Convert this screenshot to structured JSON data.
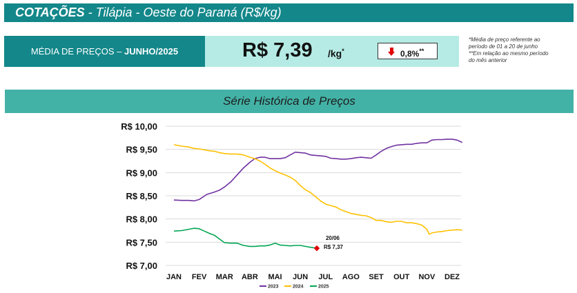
{
  "header": {
    "title_bold": "COTAÇÕES",
    "title_rest": " - Tilápia - Oeste do Paraná (R$/kg)"
  },
  "summary": {
    "avg_label_prefix": "MÉDIA DE PREÇOS – ",
    "avg_label_period": "JUNHO/2025",
    "price": "R$ 7,39",
    "unit": "/kg",
    "unit_mark": "*",
    "change_value": "0,8%",
    "change_mark": "**",
    "change_direction": "down",
    "arrow_color": "#e00000"
  },
  "notes": {
    "note1_line1": "*Média de preço referente ao",
    "note1_line2": "período de 01 a 20 de junho",
    "note2_line1": "**Em relação ao mesmo período",
    "note2_line2": "do mês anterior"
  },
  "section_title": "Série Histórica de Preços",
  "chart_data": {
    "type": "line",
    "title": "",
    "xlabel": "",
    "ylabel": "",
    "categories": [
      "JAN",
      "FEV",
      "MAR",
      "ABR",
      "MAI",
      "JUN",
      "JUL",
      "AGO",
      "SET",
      "OUT",
      "NOV",
      "DEZ"
    ],
    "ylim": [
      7.0,
      10.0
    ],
    "yticks": [
      7.0,
      7.5,
      8.0,
      8.5,
      9.0,
      9.5,
      10.0
    ],
    "ytick_labels": [
      "R$ 7,00",
      "R$ 7,50",
      "R$ 8,00",
      "R$ 8,50",
      "R$ 9,00",
      "R$ 9,50",
      "R$ 10,00"
    ],
    "grid": true,
    "legend": "bottom",
    "series": [
      {
        "name": "2023",
        "color": "#7030a0",
        "x": [
          0.0,
          0.3,
          0.6,
          0.8,
          1.0,
          1.3,
          1.6,
          1.8,
          2.0,
          2.25,
          2.5,
          2.75,
          3.0,
          3.2,
          3.4,
          3.6,
          3.8,
          4.0,
          4.2,
          4.4,
          4.6,
          4.8,
          5.0,
          5.2,
          5.4,
          5.6,
          5.8,
          6.0,
          6.2,
          6.4,
          6.6,
          6.8,
          7.0,
          7.2,
          7.4,
          7.6,
          7.8,
          8.0,
          8.2,
          8.4,
          8.6,
          8.8,
          9.0,
          9.2,
          9.4,
          9.6,
          9.8,
          10.0,
          10.2,
          10.4,
          10.6,
          10.8,
          11.0,
          11.2,
          11.4
        ],
        "values": [
          8.41,
          8.4,
          8.4,
          8.39,
          8.42,
          8.53,
          8.58,
          8.62,
          8.69,
          8.8,
          8.95,
          9.1,
          9.22,
          9.3,
          9.33,
          9.33,
          9.3,
          9.3,
          9.3,
          9.32,
          9.38,
          9.44,
          9.43,
          9.42,
          9.38,
          9.37,
          9.36,
          9.35,
          9.31,
          9.3,
          9.29,
          9.29,
          9.3,
          9.32,
          9.33,
          9.32,
          9.31,
          9.38,
          9.46,
          9.52,
          9.56,
          9.59,
          9.6,
          9.61,
          9.61,
          9.63,
          9.64,
          9.64,
          9.7,
          9.71,
          9.71,
          9.72,
          9.72,
          9.7,
          9.65
        ]
      },
      {
        "name": "2024",
        "color": "#ffc000",
        "x": [
          0.0,
          0.3,
          0.6,
          0.8,
          1.0,
          1.2,
          1.4,
          1.6,
          1.8,
          2.0,
          2.25,
          2.5,
          2.75,
          3.0,
          3.2,
          3.4,
          3.6,
          3.8,
          4.0,
          4.2,
          4.4,
          4.6,
          4.8,
          5.0,
          5.2,
          5.4,
          5.6,
          5.8,
          6.0,
          6.2,
          6.4,
          6.6,
          6.8,
          7.0,
          7.2,
          7.4,
          7.6,
          7.8,
          8.0,
          8.2,
          8.4,
          8.6,
          8.8,
          9.0,
          9.2,
          9.4,
          9.6,
          9.8,
          10.0,
          10.1,
          10.2,
          10.4,
          10.6,
          10.8,
          11.0,
          11.2,
          11.4
        ],
        "values": [
          9.6,
          9.57,
          9.55,
          9.52,
          9.51,
          9.49,
          9.47,
          9.46,
          9.43,
          9.41,
          9.4,
          9.4,
          9.38,
          9.33,
          9.3,
          9.25,
          9.18,
          9.1,
          9.04,
          8.99,
          8.95,
          8.9,
          8.83,
          8.72,
          8.63,
          8.57,
          8.48,
          8.39,
          8.32,
          8.29,
          8.26,
          8.2,
          8.16,
          8.12,
          8.1,
          8.08,
          8.07,
          8.03,
          7.97,
          7.97,
          7.94,
          7.93,
          7.95,
          7.95,
          7.92,
          7.92,
          7.9,
          7.87,
          7.78,
          7.67,
          7.7,
          7.72,
          7.73,
          7.75,
          7.76,
          7.77,
          7.76
        ]
      },
      {
        "name": "2025",
        "color": "#00a651",
        "x": [
          0.0,
          0.3,
          0.6,
          0.8,
          1.0,
          1.2,
          1.4,
          1.6,
          1.8,
          2.0,
          2.25,
          2.5,
          2.75,
          3.0,
          3.2,
          3.4,
          3.6,
          3.8,
          4.0,
          4.2,
          4.4,
          4.6,
          4.8,
          5.0,
          5.2,
          5.4,
          5.65
        ],
        "values": [
          7.74,
          7.75,
          7.78,
          7.8,
          7.79,
          7.74,
          7.69,
          7.65,
          7.57,
          7.49,
          7.48,
          7.48,
          7.43,
          7.41,
          7.41,
          7.42,
          7.42,
          7.44,
          7.48,
          7.44,
          7.43,
          7.42,
          7.43,
          7.43,
          7.41,
          7.39,
          7.37
        ]
      }
    ],
    "annotation": {
      "series": "2025",
      "x": 5.65,
      "y": 7.37,
      "date_label": "20/06",
      "value_label": "R$ 7,37",
      "marker_color": "#e00000"
    }
  }
}
